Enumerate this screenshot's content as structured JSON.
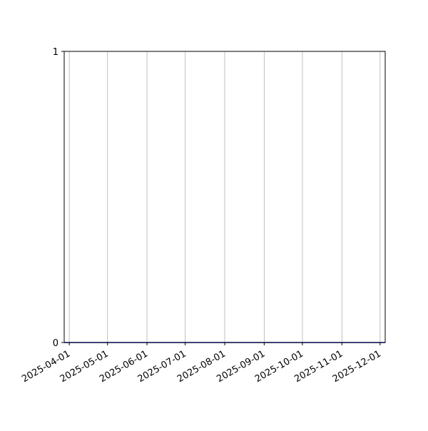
{
  "chart_data": {
    "type": "line",
    "title": "",
    "xlabel": "",
    "ylabel": "",
    "xlim": [
      "2025-03-28",
      "2025-12-05"
    ],
    "ylim": [
      0,
      1
    ],
    "x_ticks": [
      "2025-04-01",
      "2025-05-01",
      "2025-06-01",
      "2025-07-01",
      "2025-08-01",
      "2025-09-01",
      "2025-10-01",
      "2025-11-01",
      "2025-12-01"
    ],
    "y_ticks": [
      "0",
      "1"
    ],
    "grid": "vertical (x-axis only)",
    "series": [
      {
        "x": [
          "2025-03-28",
          "2025-12-05"
        ],
        "values": [
          0,
          0
        ],
        "color": "#0000cc"
      }
    ],
    "grid_color": "#b0b0b0"
  }
}
